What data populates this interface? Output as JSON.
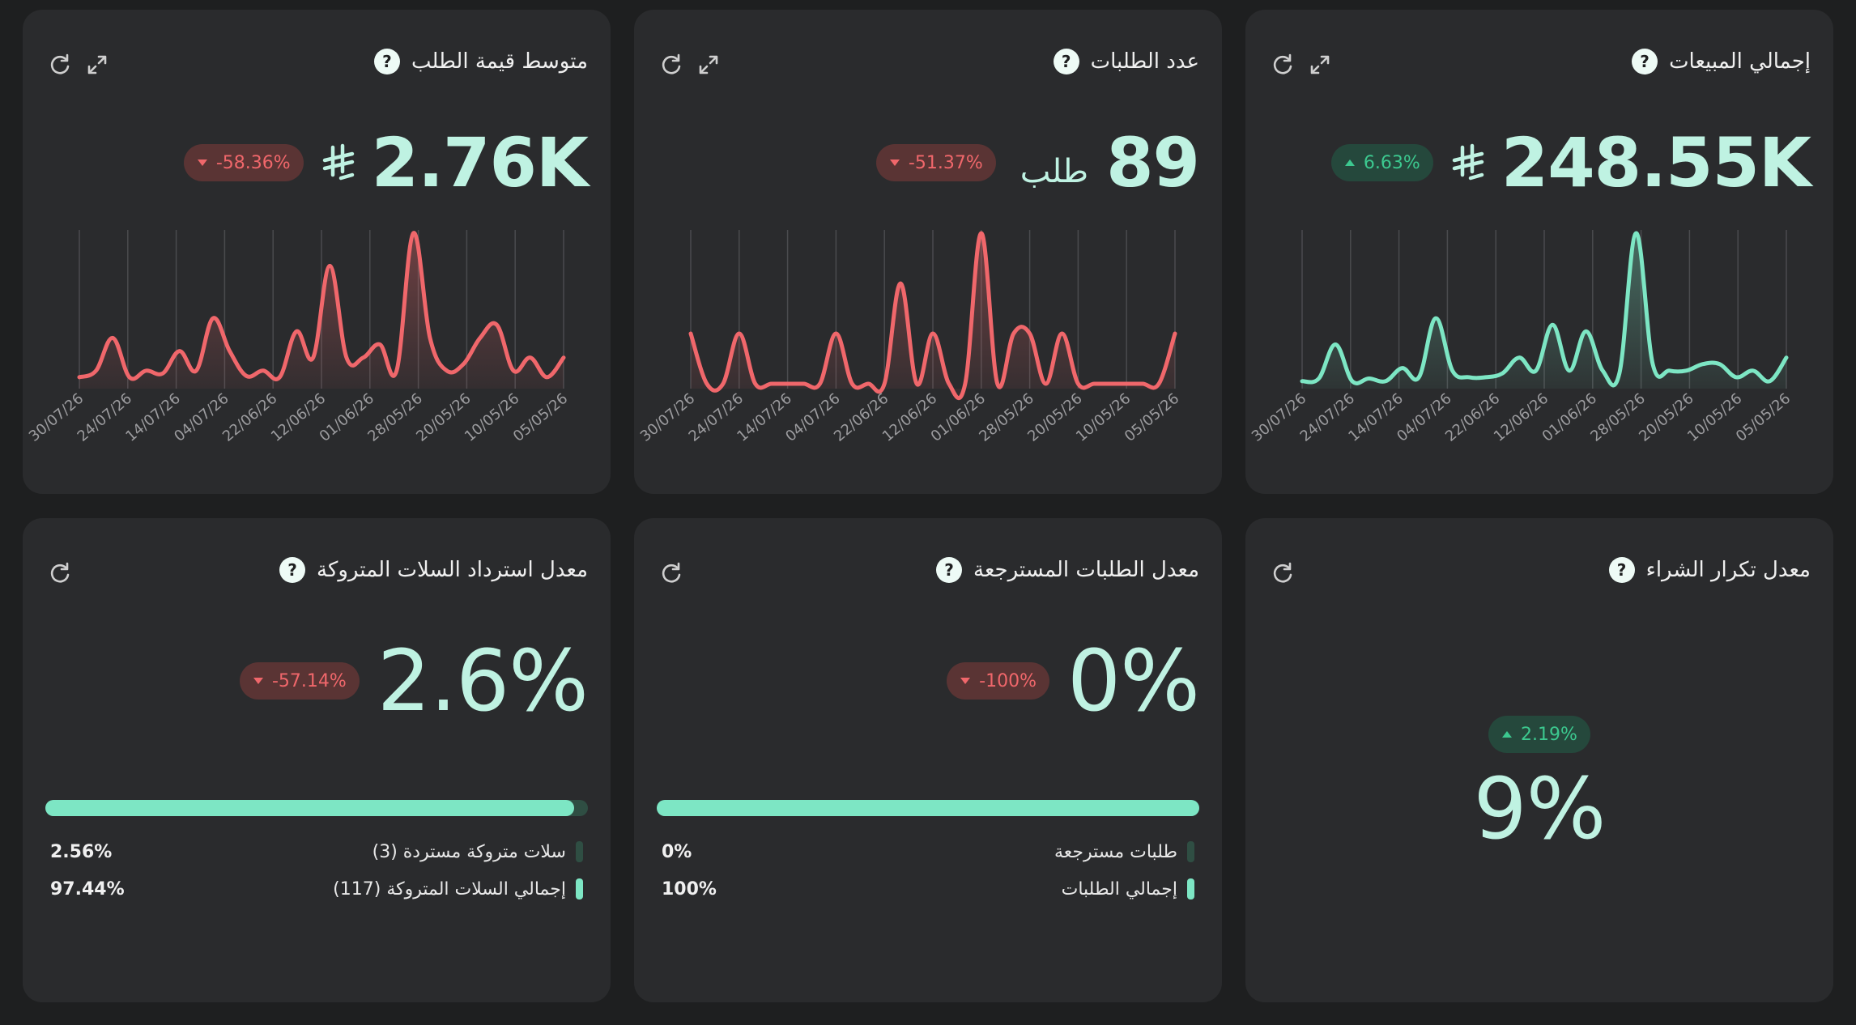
{
  "colors": {
    "background": "#1e1f20",
    "card": "#2a2b2d",
    "value": "#bff2e2",
    "accent": "#7de6c4",
    "red": "#f0676b",
    "green": "#3cc88f"
  },
  "cards": {
    "total_sales": {
      "title": "إجمالي المبيعات",
      "value": "248.55K",
      "currency_icon": "saudi-riyal-icon",
      "change": "6.63%",
      "trend": "up"
    },
    "orders_count": {
      "title": "عدد الطلبات",
      "value": "89",
      "unit": "طلب",
      "change": "-51.37%",
      "trend": "down"
    },
    "avg_order_value": {
      "title": "متوسط قيمة الطلب",
      "value": "2.76K",
      "currency_icon": "saudi-riyal-icon",
      "change": "-58.36%",
      "trend": "down"
    },
    "repeat_purchase": {
      "title": "معدل تكرار الشراء",
      "value": "9%",
      "change": "2.19%",
      "trend": "up"
    },
    "returned_orders": {
      "title": "معدل الطلبات المسترجعة",
      "value": "0%",
      "change": "-100%",
      "trend": "down",
      "progress": 1.0,
      "legend": [
        {
          "label": "طلبات مسترجعة",
          "pct": "0%"
        },
        {
          "label": "إجمالي الطلبات",
          "pct": "100%"
        }
      ]
    },
    "abandoned_carts": {
      "title": "معدل استرداد السلات المتروكة",
      "value": "2.6%",
      "change": "-57.14%",
      "trend": "down",
      "progress": 0.9744,
      "legend": [
        {
          "label": "سلات متروكة مستردة (3)",
          "pct": "2.56%"
        },
        {
          "label": "إجمالي السلات المتروكة (117)",
          "pct": "97.44%"
        }
      ]
    }
  },
  "chart_data": [
    {
      "type": "area",
      "id": "avg_order_value",
      "color": "#f0676b",
      "x_ticks": [
        "30/07/26",
        "24/07/26",
        "14/07/26",
        "04/07/26",
        "22/06/26",
        "12/06/26",
        "01/06/26",
        "28/05/26",
        "20/05/26",
        "10/05/26",
        "05/05/26"
      ],
      "values": [
        5,
        10,
        35,
        5,
        10,
        8,
        25,
        10,
        50,
        25,
        6,
        10,
        5,
        40,
        20,
        90,
        20,
        20,
        30,
        10,
        115,
        35,
        10,
        15,
        35,
        45,
        10,
        20,
        5,
        20
      ]
    },
    {
      "type": "area",
      "id": "orders_count",
      "color": "#f0676b",
      "x_ticks": [
        "30/07/26",
        "24/07/26",
        "14/07/26",
        "04/07/26",
        "22/06/26",
        "12/06/26",
        "01/06/26",
        "28/05/26",
        "20/05/26",
        "10/05/26",
        "05/05/26"
      ],
      "values": [
        1,
        0,
        0,
        1,
        0,
        0,
        0,
        0,
        0,
        1,
        0,
        0,
        0,
        2,
        0,
        1,
        0,
        0,
        3,
        0,
        1,
        1,
        0,
        1,
        0,
        0,
        0,
        0,
        0,
        0,
        1
      ]
    },
    {
      "type": "area",
      "id": "total_sales",
      "color": "#7de6c4",
      "x_ticks": [
        "30/07/26",
        "24/07/26",
        "14/07/26",
        "04/07/26",
        "22/06/26",
        "12/06/26",
        "01/06/26",
        "28/05/26",
        "20/05/26",
        "10/05/26",
        "05/05/26"
      ],
      "values": [
        2,
        4,
        30,
        2,
        4,
        2,
        12,
        5,
        50,
        10,
        5,
        5,
        8,
        20,
        10,
        45,
        10,
        40,
        10,
        8,
        115,
        15,
        10,
        10,
        15,
        15,
        5,
        10,
        2,
        20
      ]
    }
  ]
}
